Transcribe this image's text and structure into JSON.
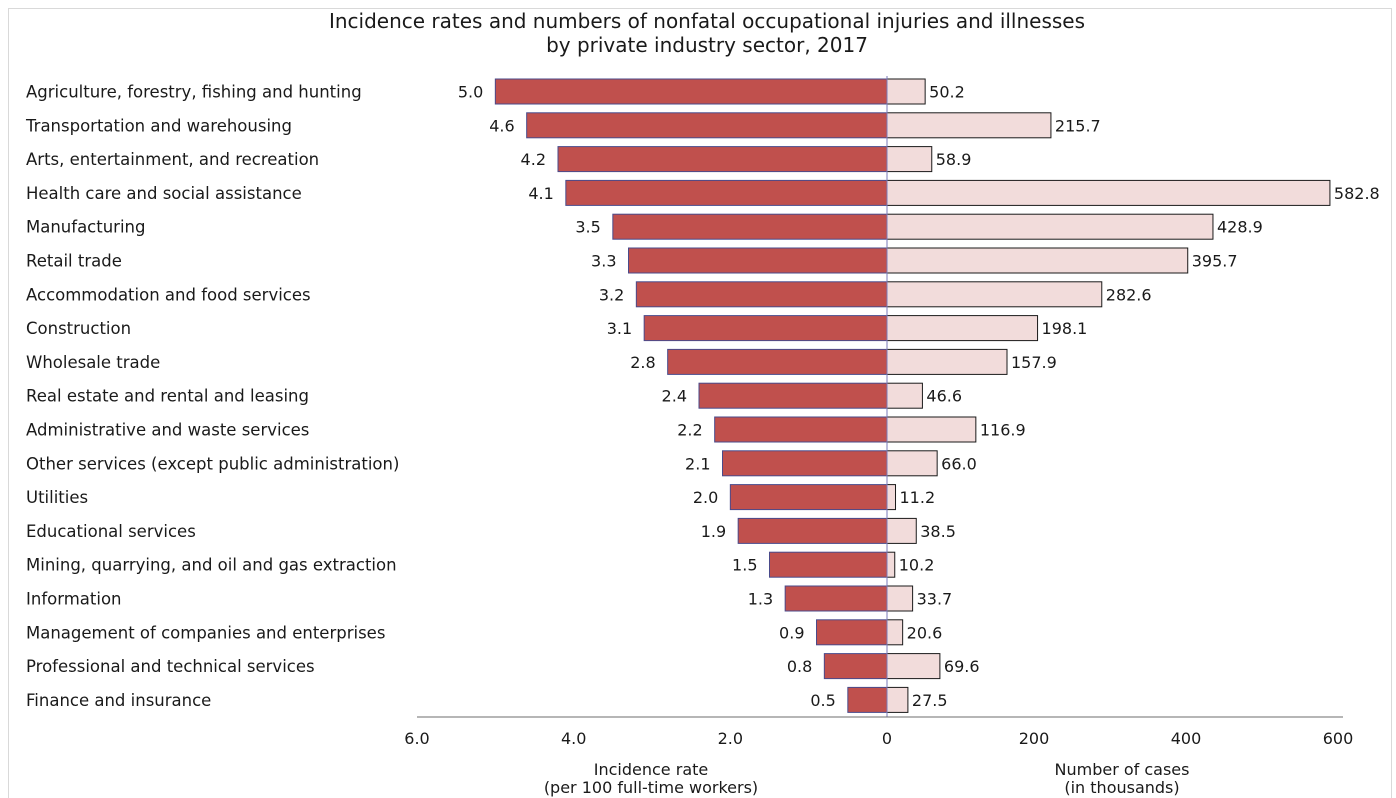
{
  "chart_data": {
    "type": "bar",
    "title_lines": [
      "Incidence rates and numbers of nonfatal occupational injuries and illnesses",
      "by private industry sector, 2017"
    ],
    "categories": [
      "Agriculture, forestry, fishing and hunting",
      "Transportation and warehousing",
      "Arts, entertainment, and recreation",
      "Health care and social assistance",
      "Manufacturing",
      "Retail trade",
      "Accommodation and food services",
      "Construction",
      "Wholesale trade",
      "Real estate and rental and leasing",
      "Administrative and waste services",
      "Other services (except public administration)",
      "Utilities",
      "Educational services",
      "Mining, quarrying, and oil and gas extraction",
      "Information",
      "Management of companies and enterprises",
      "Professional and technical services",
      "Finance and insurance"
    ],
    "series": [
      {
        "values": [
          5.0,
          4.6,
          4.2,
          4.1,
          3.5,
          3.3,
          3.2,
          3.1,
          2.8,
          2.4,
          2.2,
          2.1,
          2.0,
          1.9,
          1.5,
          1.3,
          0.9,
          0.8,
          0.5
        ],
        "labels": [
          "5.0",
          "4.6",
          "4.2",
          "4.1",
          "3.5",
          "3.3",
          "3.2",
          "3.1",
          "2.8",
          "2.4",
          "2.2",
          "2.1",
          "2.0",
          "1.9",
          "1.5",
          "1.3",
          "0.9",
          "0.8",
          "0.5"
        ],
        "color": "#c0504d",
        "xlim": [
          0,
          6.0
        ],
        "ticks": [
          "6.0",
          "4.0",
          "2.0",
          "0"
        ],
        "tick_values": [
          6.0,
          4.0,
          2.0,
          0
        ],
        "axis_title_lines": [
          "Incidence rate",
          "(per 100 full-time workers)"
        ]
      },
      {
        "values": [
          50.2,
          215.7,
          58.9,
          582.8,
          428.9,
          395.7,
          282.6,
          198.1,
          157.9,
          46.6,
          116.9,
          66.0,
          11.2,
          38.5,
          10.2,
          33.7,
          20.6,
          69.6,
          27.5
        ],
        "labels": [
          "50.2",
          "215.7",
          "58.9",
          "582.8",
          "428.9",
          "395.7",
          "282.6",
          "198.1",
          "157.9",
          "46.6",
          "116.9",
          "66.0",
          "11.2",
          "38.5",
          "10.2",
          "33.7",
          "20.6",
          "69.6",
          "27.5"
        ],
        "color": "#f2dcdb",
        "xlim": [
          0,
          600
        ],
        "ticks": [
          "200",
          "400",
          "600"
        ],
        "tick_values": [
          200,
          400,
          600
        ],
        "axis_title_lines": [
          "Number of cases",
          "(in thousands)"
        ]
      }
    ],
    "grid": false,
    "legend": "none"
  }
}
